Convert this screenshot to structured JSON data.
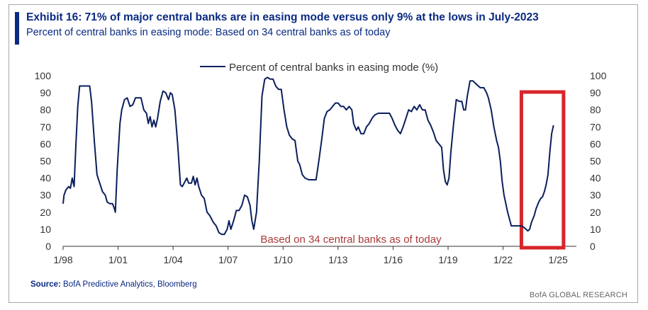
{
  "header": {
    "title": "Exhibit 16: 71% of major central banks are in easing mode versus only 9% at the lows in July-2023",
    "subtitle": "Percent of central banks in easing mode: Based on 34 central banks as of today"
  },
  "footer": {
    "source_label": "Source:",
    "source_text": "BofA Predictive Analytics, Bloomberg",
    "brand": "BofA GLOBAL RESEARCH"
  },
  "chart_data": {
    "type": "line",
    "title": "",
    "xlabel": "",
    "ylabel": "",
    "xlim": [
      1998.0,
      2026.0
    ],
    "ylim": [
      0,
      100
    ],
    "y_ticks": [
      0,
      10,
      20,
      30,
      40,
      50,
      60,
      70,
      80,
      90,
      100
    ],
    "x_ticks": [
      {
        "label": "1/98",
        "x": 1998.0
      },
      {
        "label": "1/01",
        "x": 2001.0
      },
      {
        "label": "1/04",
        "x": 2004.0
      },
      {
        "label": "1/07",
        "x": 2007.0
      },
      {
        "label": "1/10",
        "x": 2010.0
      },
      {
        "label": "1/13",
        "x": 2013.0
      },
      {
        "label": "1/16",
        "x": 2016.0
      },
      {
        "label": "1/19",
        "x": 2019.0
      },
      {
        "label": "1/22",
        "x": 2022.0
      },
      {
        "label": "1/25",
        "x": 2025.0
      }
    ],
    "grid": false,
    "legend_position": "top-center",
    "annotation": "Based on 34 central banks as of today",
    "highlight": {
      "x_range": [
        2023.0,
        2025.3
      ],
      "color": "#d7262b"
    },
    "series": [
      {
        "name": "Percent of central banks in easing mode (%)",
        "color": "#0a1f5c",
        "points": [
          [
            1998.0,
            25
          ],
          [
            1998.05,
            30
          ],
          [
            1998.15,
            33
          ],
          [
            1998.3,
            35
          ],
          [
            1998.4,
            34
          ],
          [
            1998.5,
            40
          ],
          [
            1998.6,
            35
          ],
          [
            1998.7,
            60
          ],
          [
            1998.8,
            82
          ],
          [
            1998.9,
            94
          ],
          [
            1999.1,
            94
          ],
          [
            1999.3,
            94
          ],
          [
            1999.45,
            94
          ],
          [
            1999.55,
            85
          ],
          [
            1999.7,
            62
          ],
          [
            1999.85,
            42
          ],
          [
            2000.0,
            37
          ],
          [
            2000.15,
            32
          ],
          [
            2000.3,
            30
          ],
          [
            2000.4,
            26
          ],
          [
            2000.55,
            25
          ],
          [
            2000.7,
            25
          ],
          [
            2000.8,
            22
          ],
          [
            2000.85,
            20
          ],
          [
            2000.95,
            45
          ],
          [
            2001.1,
            72
          ],
          [
            2001.2,
            80
          ],
          [
            2001.35,
            86
          ],
          [
            2001.5,
            87
          ],
          [
            2001.65,
            82
          ],
          [
            2001.8,
            83
          ],
          [
            2001.95,
            87
          ],
          [
            2002.1,
            87
          ],
          [
            2002.25,
            87
          ],
          [
            2002.4,
            80
          ],
          [
            2002.55,
            78
          ],
          [
            2002.65,
            72
          ],
          [
            2002.75,
            76
          ],
          [
            2002.85,
            70
          ],
          [
            2002.95,
            74
          ],
          [
            2003.05,
            70
          ],
          [
            2003.15,
            75
          ],
          [
            2003.3,
            85
          ],
          [
            2003.45,
            91
          ],
          [
            2003.6,
            90
          ],
          [
            2003.75,
            86
          ],
          [
            2003.85,
            90
          ],
          [
            2003.95,
            89
          ],
          [
            2004.1,
            80
          ],
          [
            2004.25,
            60
          ],
          [
            2004.4,
            36
          ],
          [
            2004.5,
            35
          ],
          [
            2004.6,
            37
          ],
          [
            2004.75,
            40
          ],
          [
            2004.85,
            37
          ],
          [
            2005.0,
            37
          ],
          [
            2005.1,
            41
          ],
          [
            2005.2,
            36
          ],
          [
            2005.3,
            40
          ],
          [
            2005.4,
            35
          ],
          [
            2005.55,
            30
          ],
          [
            2005.7,
            28
          ],
          [
            2005.85,
            20
          ],
          [
            2006.0,
            18
          ],
          [
            2006.2,
            14
          ],
          [
            2006.35,
            12
          ],
          [
            2006.5,
            8
          ],
          [
            2006.65,
            7
          ],
          [
            2006.8,
            7
          ],
          [
            2006.95,
            10
          ],
          [
            2007.05,
            15
          ],
          [
            2007.15,
            10
          ],
          [
            2007.3,
            15
          ],
          [
            2007.45,
            21
          ],
          [
            2007.6,
            21
          ],
          [
            2007.75,
            24
          ],
          [
            2007.9,
            30
          ],
          [
            2008.05,
            29
          ],
          [
            2008.2,
            24
          ],
          [
            2008.3,
            15
          ],
          [
            2008.4,
            10
          ],
          [
            2008.55,
            20
          ],
          [
            2008.7,
            50
          ],
          [
            2008.85,
            88
          ],
          [
            2009.0,
            98
          ],
          [
            2009.15,
            99
          ],
          [
            2009.3,
            98
          ],
          [
            2009.45,
            98
          ],
          [
            2009.6,
            94
          ],
          [
            2009.75,
            92
          ],
          [
            2009.9,
            92
          ],
          [
            2010.05,
            80
          ],
          [
            2010.2,
            70
          ],
          [
            2010.35,
            65
          ],
          [
            2010.5,
            63
          ],
          [
            2010.65,
            62
          ],
          [
            2010.8,
            50
          ],
          [
            2010.9,
            48
          ],
          [
            2011.05,
            42
          ],
          [
            2011.2,
            40
          ],
          [
            2011.4,
            39
          ],
          [
            2011.6,
            39
          ],
          [
            2011.8,
            39
          ],
          [
            2011.95,
            50
          ],
          [
            2012.1,
            62
          ],
          [
            2012.25,
            75
          ],
          [
            2012.4,
            79
          ],
          [
            2012.55,
            80
          ],
          [
            2012.7,
            82
          ],
          [
            2012.85,
            84
          ],
          [
            2013.0,
            84
          ],
          [
            2013.15,
            82
          ],
          [
            2013.3,
            82
          ],
          [
            2013.45,
            80
          ],
          [
            2013.6,
            82
          ],
          [
            2013.75,
            80
          ],
          [
            2013.85,
            72
          ],
          [
            2014.0,
            68
          ],
          [
            2014.1,
            70
          ],
          [
            2014.25,
            66
          ],
          [
            2014.4,
            66
          ],
          [
            2014.55,
            70
          ],
          [
            2014.7,
            72
          ],
          [
            2014.85,
            75
          ],
          [
            2015.0,
            77
          ],
          [
            2015.2,
            78
          ],
          [
            2015.4,
            78
          ],
          [
            2015.6,
            78
          ],
          [
            2015.8,
            78
          ],
          [
            2015.95,
            75
          ],
          [
            2016.1,
            71
          ],
          [
            2016.25,
            68
          ],
          [
            2016.4,
            66
          ],
          [
            2016.55,
            70
          ],
          [
            2016.7,
            75
          ],
          [
            2016.85,
            80
          ],
          [
            2017.0,
            79
          ],
          [
            2017.15,
            82
          ],
          [
            2017.3,
            80
          ],
          [
            2017.45,
            83
          ],
          [
            2017.6,
            80
          ],
          [
            2017.75,
            80
          ],
          [
            2017.9,
            74
          ],
          [
            2018.05,
            71
          ],
          [
            2018.2,
            67
          ],
          [
            2018.35,
            62
          ],
          [
            2018.5,
            60
          ],
          [
            2018.65,
            58
          ],
          [
            2018.75,
            45
          ],
          [
            2018.85,
            38
          ],
          [
            2018.95,
            36
          ],
          [
            2019.05,
            40
          ],
          [
            2019.15,
            55
          ],
          [
            2019.3,
            72
          ],
          [
            2019.45,
            86
          ],
          [
            2019.6,
            85
          ],
          [
            2019.75,
            85
          ],
          [
            2019.85,
            80
          ],
          [
            2019.95,
            80
          ],
          [
            2020.05,
            88
          ],
          [
            2020.2,
            97
          ],
          [
            2020.35,
            97
          ],
          [
            2020.55,
            95
          ],
          [
            2020.75,
            93
          ],
          [
            2020.95,
            93
          ],
          [
            2021.1,
            90
          ],
          [
            2021.2,
            87
          ],
          [
            2021.35,
            80
          ],
          [
            2021.5,
            70
          ],
          [
            2021.65,
            62
          ],
          [
            2021.75,
            58
          ],
          [
            2021.85,
            50
          ],
          [
            2021.95,
            38
          ],
          [
            2022.05,
            30
          ],
          [
            2022.15,
            25
          ],
          [
            2022.25,
            20
          ],
          [
            2022.35,
            16
          ],
          [
            2022.45,
            12
          ],
          [
            2022.6,
            12
          ],
          [
            2022.75,
            12
          ],
          [
            2022.9,
            12
          ],
          [
            2023.0,
            12
          ],
          [
            2023.15,
            11
          ],
          [
            2023.25,
            10
          ],
          [
            2023.35,
            9
          ],
          [
            2023.45,
            10
          ],
          [
            2023.55,
            14
          ],
          [
            2023.7,
            18
          ],
          [
            2023.8,
            22
          ],
          [
            2023.95,
            26
          ],
          [
            2024.05,
            28
          ],
          [
            2024.15,
            29
          ],
          [
            2024.25,
            32
          ],
          [
            2024.35,
            36
          ],
          [
            2024.45,
            42
          ],
          [
            2024.55,
            55
          ],
          [
            2024.65,
            66
          ],
          [
            2024.75,
            71
          ]
        ]
      }
    ]
  }
}
